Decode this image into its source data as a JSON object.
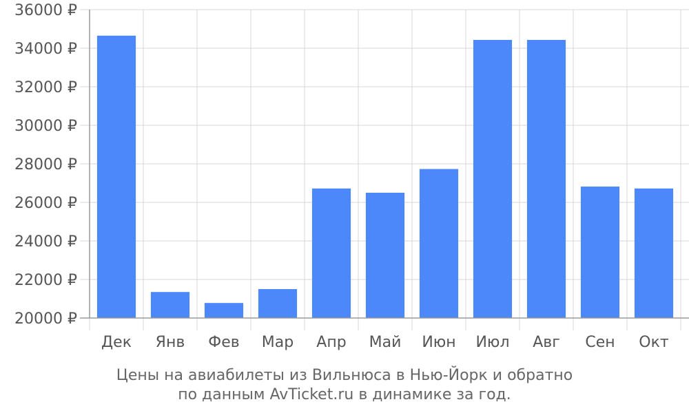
{
  "chart_data": {
    "type": "bar",
    "categories": [
      "Дек",
      "Янв",
      "Фев",
      "Мар",
      "Апр",
      "Май",
      "Июн",
      "Июл",
      "Авг",
      "Сен",
      "Окт"
    ],
    "series": [
      {
        "values": [
          34650,
          21350,
          20780,
          21500,
          26720,
          26500,
          27730,
          34430,
          34430,
          26820,
          26720
        ]
      }
    ],
    "ylim": [
      20000,
      36000
    ],
    "yticks": [
      20000,
      22000,
      24000,
      26000,
      28000,
      30000,
      32000,
      34000,
      36000
    ],
    "ytick_suffix": " ₽",
    "bar_color": "#4d88fb",
    "grid": true,
    "caption_line1": "Цены на авиабилеты из Вильнюса в Нью-Йорк и обратно",
    "caption_line2": "по данным AvTicket.ru в динамике за год."
  }
}
